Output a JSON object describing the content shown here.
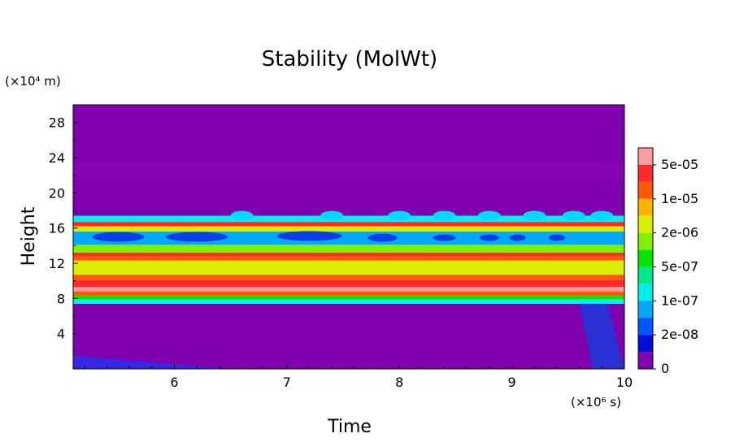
{
  "chart_data": {
    "type": "heatmap",
    "title": "Stability (MolWt)",
    "xlabel": "Time",
    "ylabel": "Height",
    "x_unit_label": "(×10⁶ s)",
    "y_unit_label": "(×10⁴ m)",
    "xlim": [
      5.1,
      10
    ],
    "ylim": [
      0,
      30
    ],
    "x_ticks": [
      "6",
      "7",
      "8",
      "9",
      "10"
    ],
    "y_ticks": [
      "4",
      "8",
      "12",
      "16",
      "20",
      "24",
      "28"
    ],
    "colorbar": {
      "labels": [
        "5e-05",
        "1e-05",
        "2e-06",
        "5e-07",
        "1e-07",
        "2e-08",
        "0"
      ],
      "colors": [
        "#ff9d9d",
        "#ff2b2b",
        "#ff5a00",
        "#ffb400",
        "#d8f000",
        "#7ef000",
        "#00e600",
        "#00e88c",
        "#00eeee",
        "#00a8ff",
        "#0055ff",
        "#0010d8",
        "#8000b0"
      ]
    },
    "bands": [
      {
        "from": 0,
        "to": 7.4,
        "level": 12
      },
      {
        "from": 7.4,
        "to": 7.9,
        "level": 8
      },
      {
        "from": 7.9,
        "to": 8.3,
        "level": 6
      },
      {
        "from": 8.3,
        "to": 8.8,
        "level": 2
      },
      {
        "from": 8.8,
        "to": 9.3,
        "level": 0
      },
      {
        "from": 9.3,
        "to": 10.1,
        "level": 1
      },
      {
        "from": 10.1,
        "to": 10.7,
        "level": 2
      },
      {
        "from": 10.7,
        "to": 12.3,
        "level": 4
      },
      {
        "from": 12.3,
        "to": 12.8,
        "level": 2
      },
      {
        "from": 12.8,
        "to": 13.2,
        "level": 1
      },
      {
        "from": 13.2,
        "to": 14.1,
        "level": 5
      },
      {
        "from": 14.1,
        "to": 15.6,
        "level": 9
      },
      {
        "from": 15.6,
        "to": 16.2,
        "level": 4
      },
      {
        "from": 16.2,
        "to": 16.7,
        "level": 1
      },
      {
        "from": 16.7,
        "to": 17.4,
        "level": 8
      },
      {
        "from": 17.4,
        "to": 30,
        "level": 12
      }
    ]
  }
}
